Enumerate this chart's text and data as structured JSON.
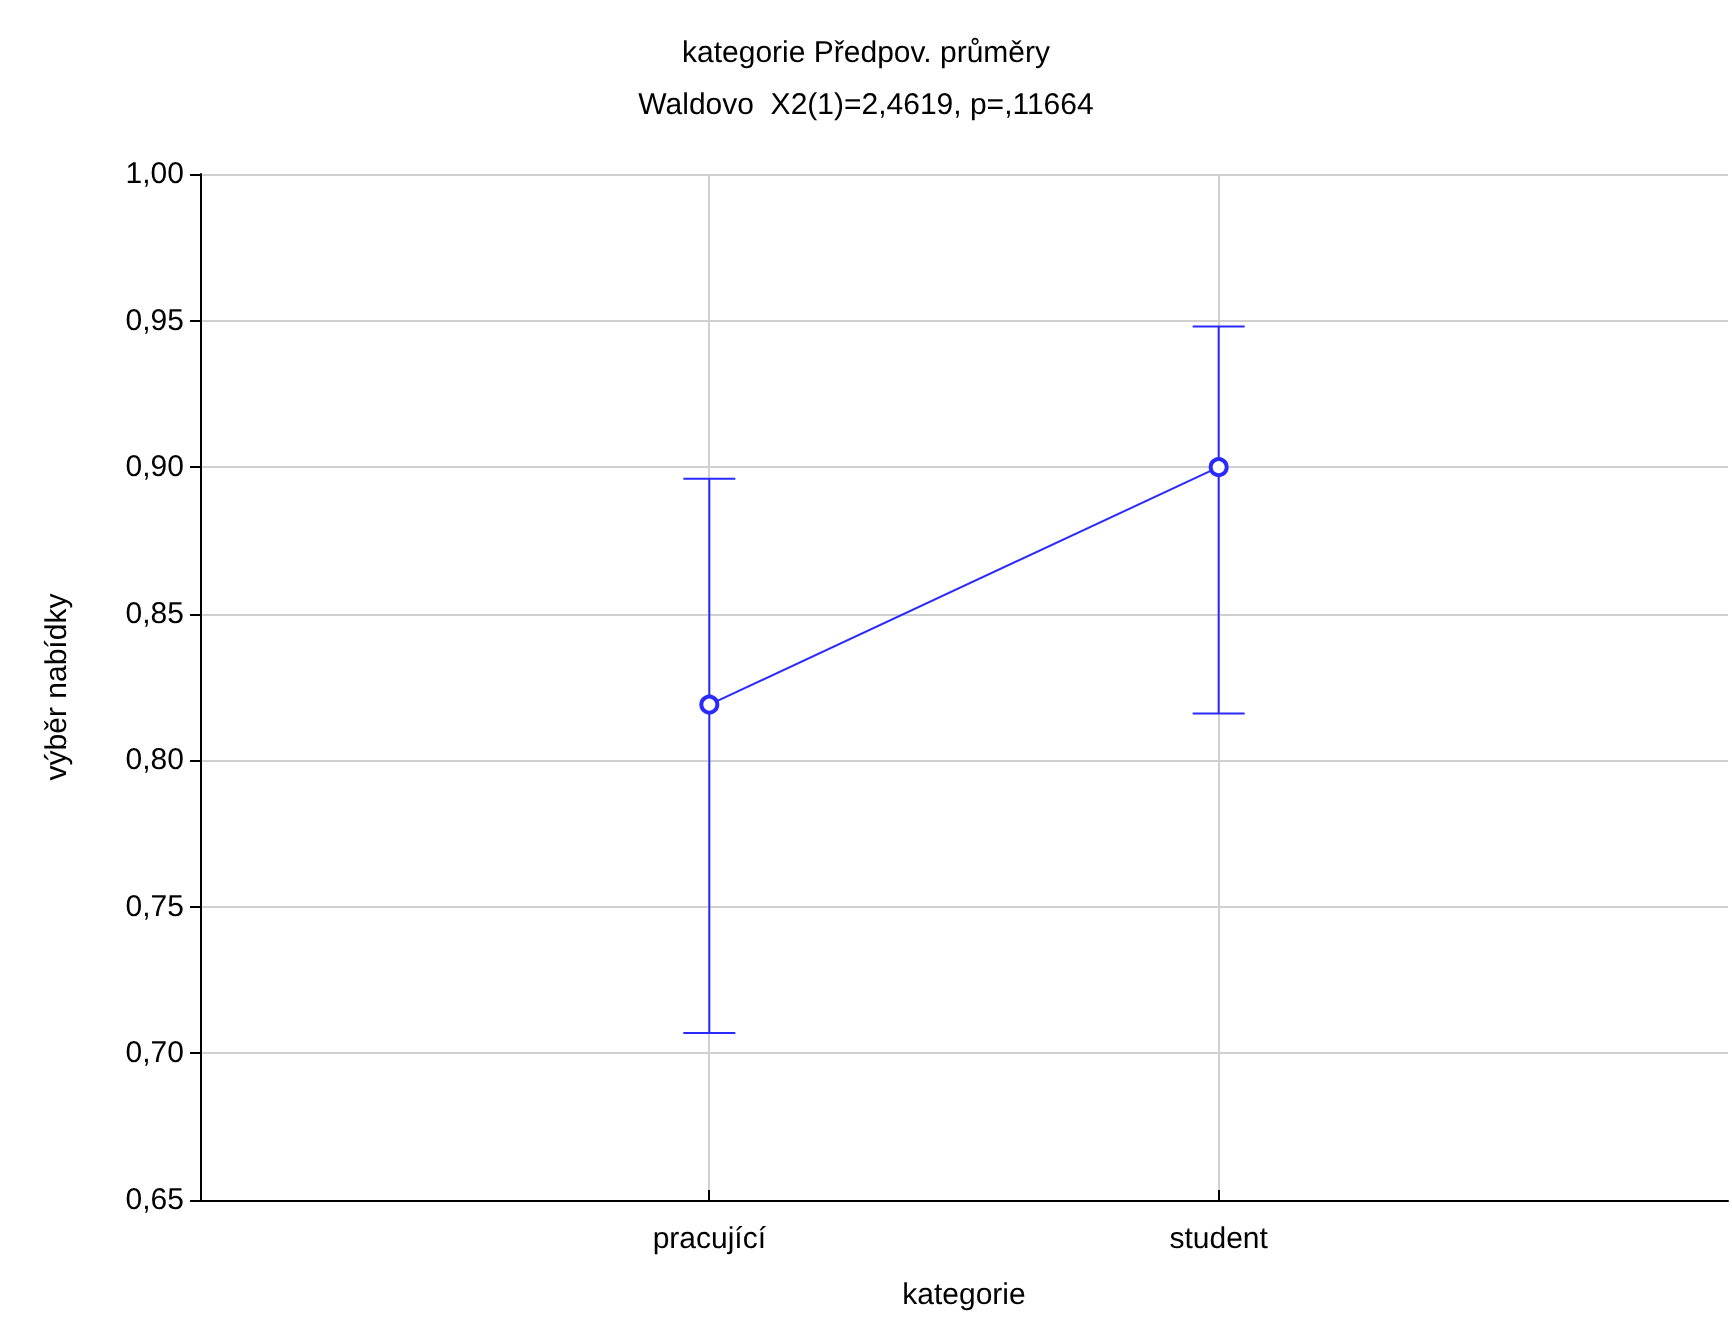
{
  "chart_data": {
    "type": "line",
    "title": "kategorie Předpov. průměry",
    "subtitle": "Waldovo  X2(1)=2,4619, p=,11664",
    "xlabel": "kategorie",
    "ylabel": "výběr nabídky",
    "categories": [
      "pracující",
      "student"
    ],
    "series": [
      {
        "color": "#2a2aff",
        "values": [
          0.819,
          0.9
        ],
        "errors": [
          [
            0.707,
            0.896
          ],
          [
            0.816,
            0.948
          ]
        ]
      }
    ],
    "ylim": [
      0.65,
      1.0
    ],
    "yticks": [
      {
        "value": 0.65,
        "label": "0,65"
      },
      {
        "value": 0.7,
        "label": "0,70"
      },
      {
        "value": 0.75,
        "label": "0,75"
      },
      {
        "value": 0.8,
        "label": "0,80"
      },
      {
        "value": 0.85,
        "label": "0,85"
      },
      {
        "value": 0.9,
        "label": "0,90"
      },
      {
        "value": 0.95,
        "label": "0,95"
      },
      {
        "value": 1.0,
        "label": "1,00"
      }
    ],
    "grid": true,
    "marker": "circle",
    "line_style": "solid"
  }
}
